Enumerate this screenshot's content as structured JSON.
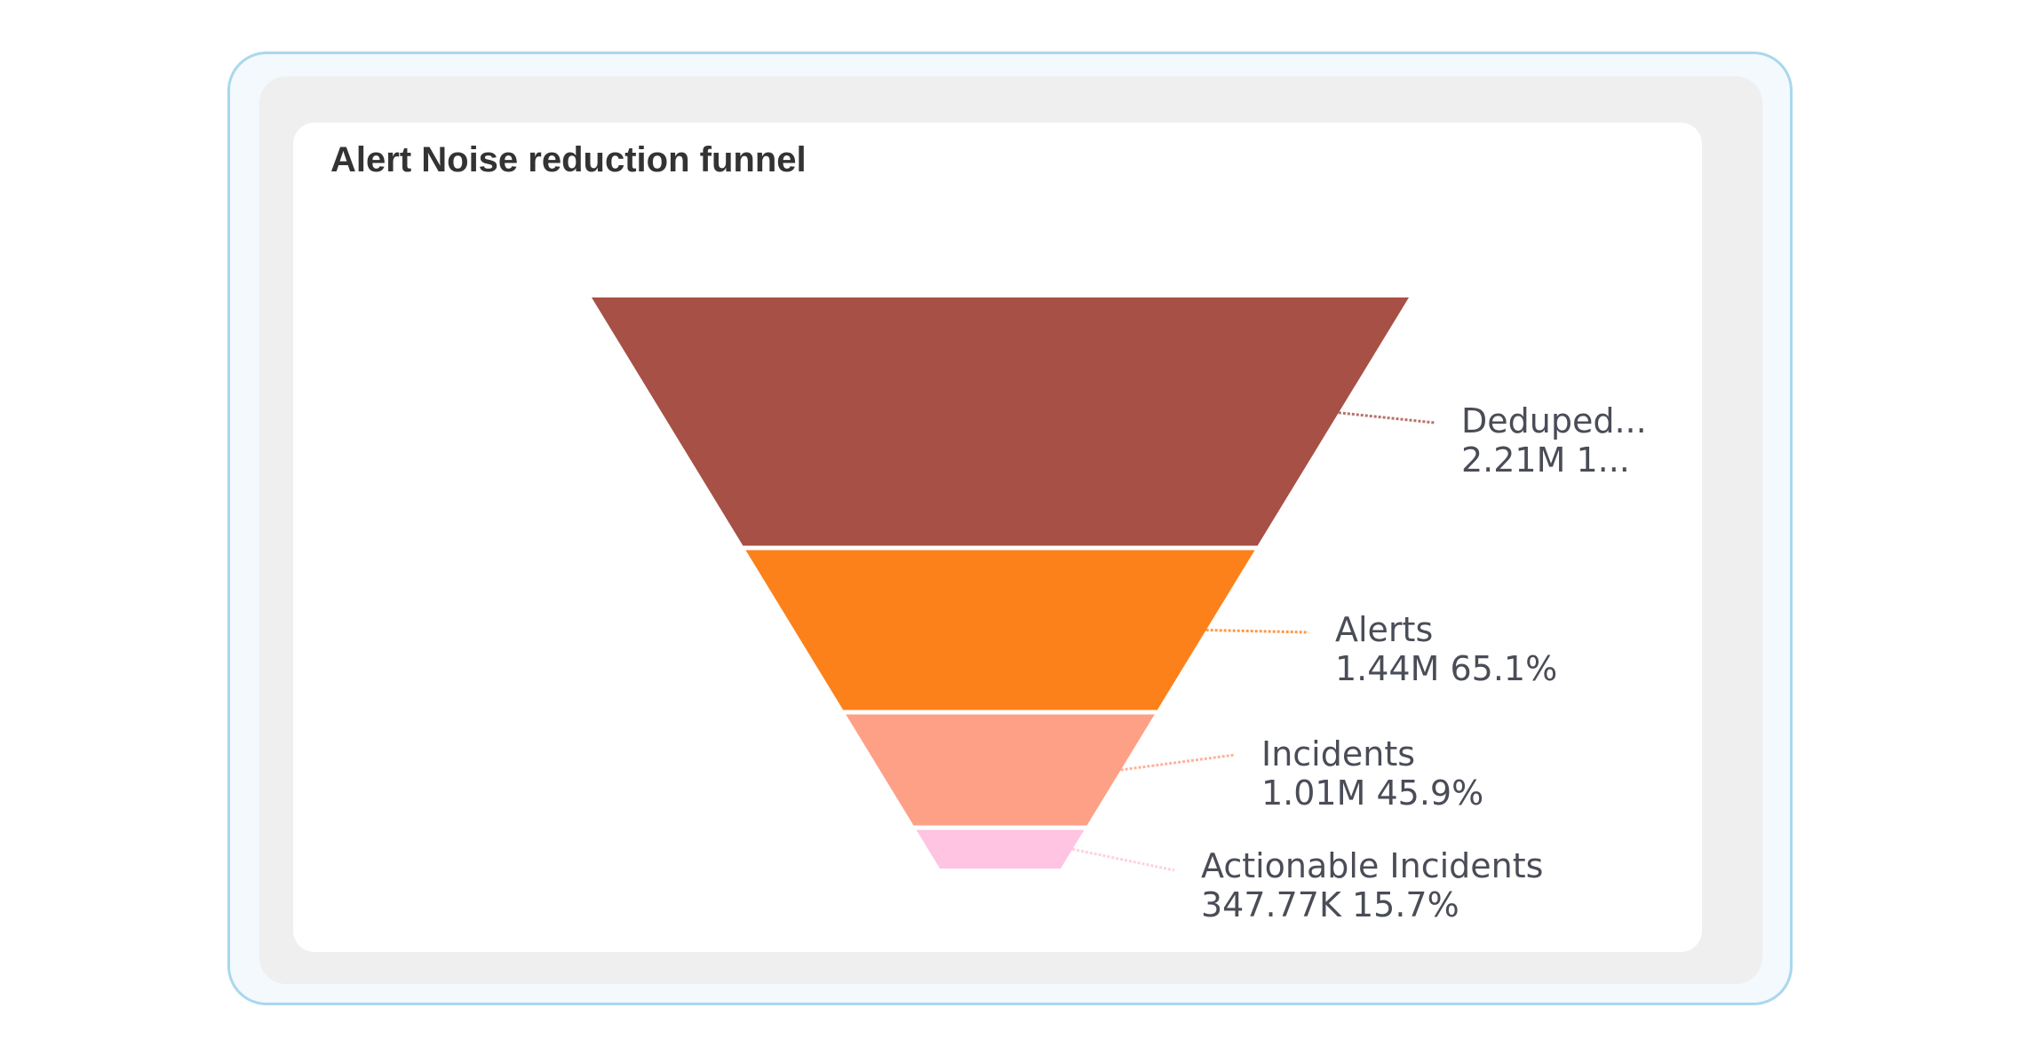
{
  "chart_data": {
    "type": "funnel",
    "title": "Alert Noise reduction funnel",
    "stages": [
      {
        "name": "Deduped...",
        "value_label": "2.21M 1...",
        "value": 2210000,
        "percent": 100,
        "color": "#a65046"
      },
      {
        "name": "Alerts",
        "value_label": "1.44M 65.1%",
        "value": 1440000,
        "percent": 65.1,
        "color": "#fc811b"
      },
      {
        "name": "Incidents",
        "value_label": "1.01M 45.9%",
        "value": 1010000,
        "percent": 45.9,
        "color": "#fea086"
      },
      {
        "name": "Actionable Incidents",
        "value_label": "347.77K 15.7%",
        "value": 347770,
        "percent": 15.7,
        "color": "#fec4e1"
      }
    ],
    "legend": "none",
    "grid": false
  }
}
